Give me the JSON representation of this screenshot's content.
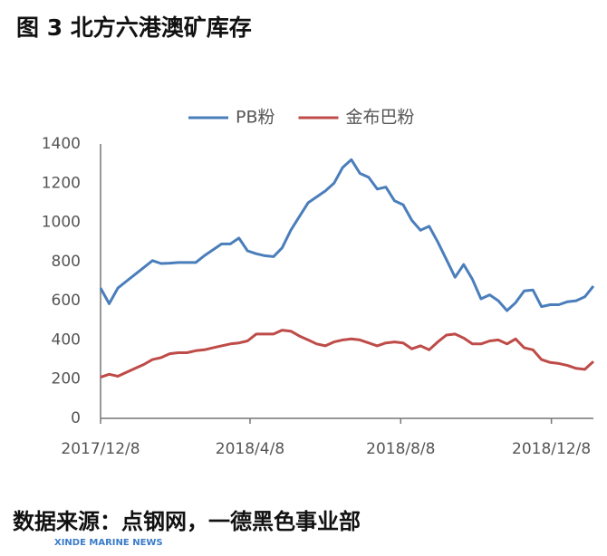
{
  "chart_data": {
    "type": "line",
    "title": "图 3 北方六港澳矿库存",
    "source": "数据来源：点钢网，一德黑色事业部",
    "watermark": "XINDE MARINE NEWS",
    "x": [
      "2017/12/8",
      "2017/12/15",
      "2017/12/22",
      "2017/12/29",
      "2018/1/5",
      "2018/1/12",
      "2018/1/19",
      "2018/1/26",
      "2018/2/2",
      "2018/2/9",
      "2018/2/16",
      "2018/2/23",
      "2018/3/2",
      "2018/3/9",
      "2018/3/16",
      "2018/3/23",
      "2018/3/30",
      "2018/4/6",
      "2018/4/13",
      "2018/4/20",
      "2018/4/27",
      "2018/5/4",
      "2018/5/11",
      "2018/5/18",
      "2018/5/25",
      "2018/6/1",
      "2018/6/8",
      "2018/6/15",
      "2018/6/22",
      "2018/6/29",
      "2018/7/6",
      "2018/7/13",
      "2018/7/20",
      "2018/7/27",
      "2018/8/3",
      "2018/8/10",
      "2018/8/17",
      "2018/8/24",
      "2018/8/31",
      "2018/9/7",
      "2018/9/14",
      "2018/9/21",
      "2018/9/28",
      "2018/10/5",
      "2018/10/12",
      "2018/10/19",
      "2018/10/26",
      "2018/11/2",
      "2018/11/9",
      "2018/11/16",
      "2018/11/23",
      "2018/11/30",
      "2018/12/7",
      "2018/12/14",
      "2018/12/21",
      "2018/12/28",
      "2019/1/4",
      "2019/1/11"
    ],
    "series": [
      {
        "name": "PB粉",
        "color": "#4a7ebb",
        "values": [
          665,
          585,
          665,
          700,
          735,
          770,
          805,
          790,
          792,
          795,
          795,
          795,
          830,
          860,
          890,
          890,
          920,
          855,
          840,
          830,
          825,
          870,
          960,
          1030,
          1100,
          1130,
          1160,
          1200,
          1280,
          1320,
          1250,
          1230,
          1170,
          1180,
          1110,
          1090,
          1010,
          960,
          980,
          900,
          810,
          720,
          785,
          710,
          610,
          630,
          600,
          550,
          590,
          650,
          655,
          570,
          580,
          580,
          595,
          600,
          620,
          675
        ]
      },
      {
        "name": "金布巴粉",
        "color": "#be4b48",
        "values": [
          210,
          225,
          215,
          235,
          255,
          275,
          300,
          310,
          330,
          335,
          335,
          345,
          350,
          360,
          370,
          380,
          385,
          395,
          430,
          430,
          430,
          450,
          445,
          420,
          400,
          380,
          370,
          390,
          400,
          405,
          400,
          385,
          370,
          385,
          390,
          385,
          355,
          370,
          350,
          390,
          425,
          430,
          410,
          380,
          380,
          395,
          400,
          380,
          405,
          360,
          350,
          300,
          285,
          280,
          270,
          255,
          250,
          290
        ]
      }
    ],
    "xlim": [
      "2017/12/8",
      "2019/1/11"
    ],
    "xticks": [
      "2017/12/8",
      "2018/4/8",
      "2018/8/8",
      "2018/12/8"
    ],
    "ylim": [
      0,
      1400
    ],
    "yticks": [
      0,
      200,
      400,
      600,
      800,
      1000,
      1200,
      1400
    ],
    "legend": "top"
  }
}
